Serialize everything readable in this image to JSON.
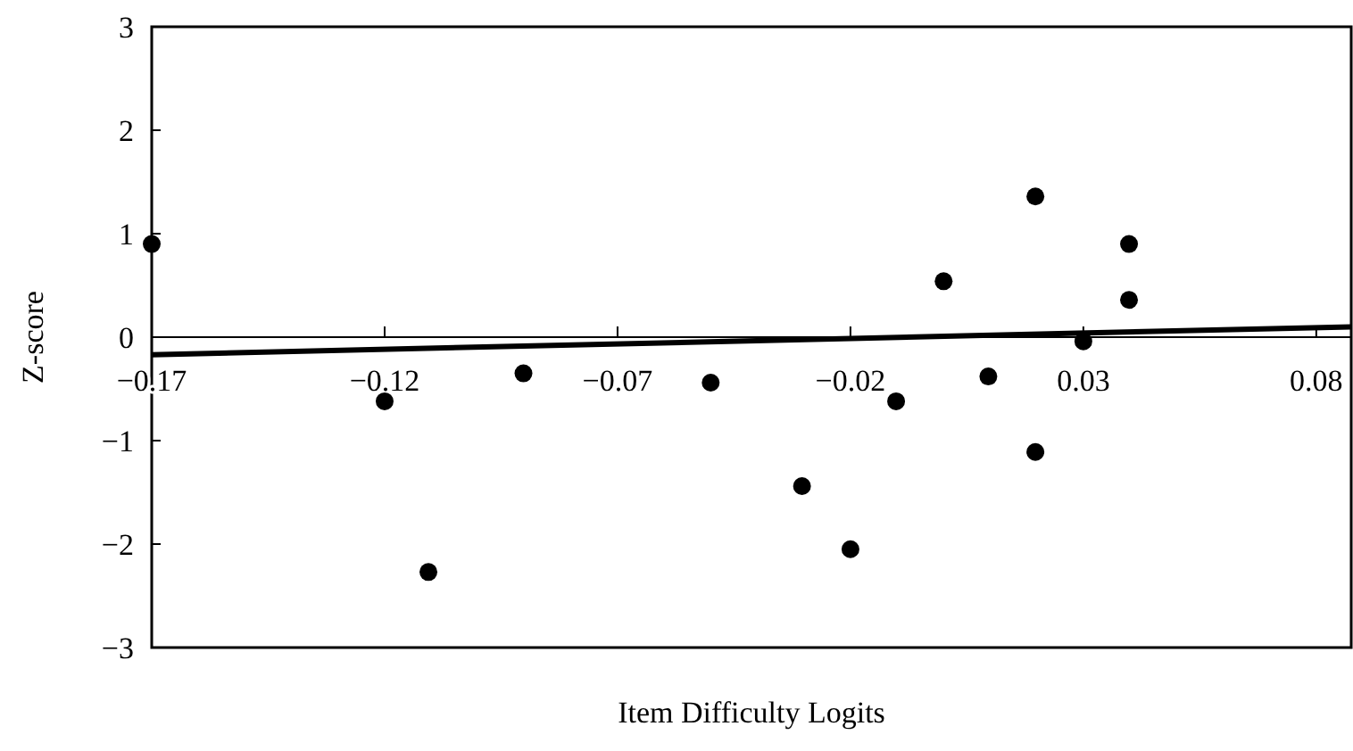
{
  "chart_data": {
    "type": "scatter",
    "xlabel": "Item Difficulty Logits",
    "ylabel": "Z-score",
    "xlim": [
      -0.17,
      0.0875
    ],
    "ylim": [
      -3,
      3
    ],
    "xticks": [
      -0.17,
      -0.12,
      -0.07,
      -0.02,
      0.03,
      0.08
    ],
    "yticks": [
      -3,
      -2,
      -1,
      0,
      1,
      2,
      3
    ],
    "grid": false,
    "marker": "circle",
    "series": [
      {
        "color": "#000000",
        "x": [
          -0.17,
          -0.12,
          -0.1106,
          -0.0902,
          -0.05,
          -0.0304,
          -0.02,
          -0.0102,
          0.0,
          0.0096,
          0.0197,
          0.0197,
          0.03,
          0.0398,
          0.0398
        ],
        "values": [
          0.9,
          -0.62,
          -2.27,
          -0.35,
          -0.44,
          -1.44,
          -2.05,
          -0.62,
          0.54,
          -0.38,
          1.36,
          -1.11,
          -0.04,
          0.9,
          0.36
        ]
      },
      {
        "type": "line",
        "color": "#000000",
        "marker": "none",
        "line_style": "solid",
        "x": [
          -0.17,
          0.0875
        ],
        "values": [
          -0.17,
          0.1
        ]
      }
    ]
  }
}
